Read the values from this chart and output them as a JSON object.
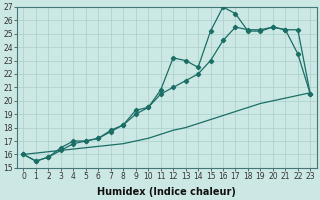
{
  "xlabel": "Humidex (Indice chaleur)",
  "background_color": "#cce8e4",
  "grid_color": "#aacfcc",
  "line_color": "#1a6e65",
  "xlim": [
    -0.5,
    23.5
  ],
  "ylim": [
    15,
    27
  ],
  "xticks": [
    0,
    1,
    2,
    3,
    4,
    5,
    6,
    7,
    8,
    9,
    10,
    11,
    12,
    13,
    14,
    15,
    16,
    17,
    18,
    19,
    20,
    21,
    22,
    23
  ],
  "yticks": [
    15,
    16,
    17,
    18,
    19,
    20,
    21,
    22,
    23,
    24,
    25,
    26,
    27
  ],
  "line1_x": [
    0,
    1,
    2,
    3,
    4,
    5,
    6,
    7,
    8,
    9,
    10,
    11,
    12,
    13,
    14,
    15,
    16,
    17,
    18,
    19,
    20,
    21,
    22,
    23
  ],
  "line1_y": [
    16.0,
    15.5,
    15.8,
    16.5,
    17.0,
    17.0,
    17.2,
    17.8,
    18.2,
    19.3,
    19.5,
    20.8,
    23.2,
    23.0,
    22.5,
    25.2,
    27.0,
    26.5,
    25.2,
    25.2,
    25.5,
    25.3,
    23.5,
    20.5
  ],
  "line2_x": [
    0,
    1,
    2,
    3,
    4,
    5,
    6,
    7,
    8,
    9,
    10,
    11,
    12,
    13,
    14,
    15,
    16,
    17,
    18,
    19,
    20,
    21,
    22,
    23
  ],
  "line2_y": [
    16.0,
    15.5,
    15.8,
    16.3,
    16.8,
    17.0,
    17.2,
    17.7,
    18.2,
    19.0,
    19.5,
    20.5,
    21.0,
    21.5,
    22.0,
    23.0,
    24.5,
    25.5,
    25.3,
    25.3,
    25.5,
    25.3,
    25.3,
    20.5
  ],
  "line3_x": [
    0,
    1,
    2,
    3,
    4,
    5,
    6,
    7,
    8,
    9,
    10,
    11,
    12,
    13,
    14,
    15,
    16,
    17,
    18,
    19,
    20,
    21,
    22,
    23
  ],
  "line3_y": [
    16.0,
    16.1,
    16.2,
    16.3,
    16.4,
    16.5,
    16.6,
    16.7,
    16.8,
    17.0,
    17.2,
    17.5,
    17.8,
    18.0,
    18.3,
    18.6,
    18.9,
    19.2,
    19.5,
    19.8,
    20.0,
    20.2,
    20.4,
    20.6
  ],
  "marker": "D",
  "markersize": 2.2,
  "linewidth": 0.9,
  "tick_fontsize": 5.5,
  "label_fontsize": 7
}
